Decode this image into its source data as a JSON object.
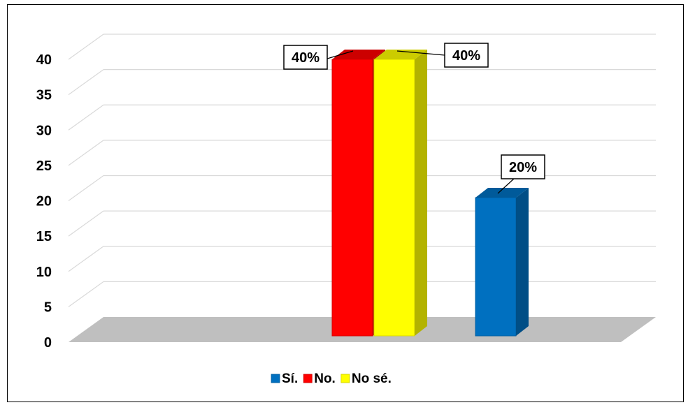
{
  "chart_data": {
    "type": "bar",
    "style": "3d-clustered-column",
    "categories": [
      ""
    ],
    "series": [
      {
        "name": "Sí.",
        "values": [
          20
        ],
        "label": "20%",
        "color": "#0070C0"
      },
      {
        "name": "No.",
        "values": [
          40
        ],
        "label": "40%",
        "color": "#FF0000"
      },
      {
        "name": "No sé.",
        "values": [
          40
        ],
        "label": "40%",
        "color": "#FFFF00"
      }
    ],
    "ylim": [
      0,
      40
    ],
    "yticks": [
      0,
      5,
      10,
      15,
      20,
      25,
      30,
      35,
      40
    ],
    "grid": true,
    "legend": "bottom",
    "floor_color": "#BFBFBF"
  }
}
